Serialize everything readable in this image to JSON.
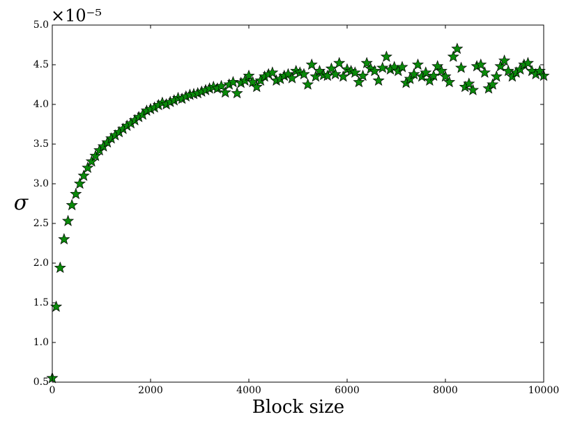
{
  "chart_data": {
    "type": "scatter",
    "x_label": "Block size",
    "y_label": "σ",
    "y_offset_label": "×10⁻⁵",
    "color": "#0a8a0a",
    "marker": "star",
    "xlim": [
      0,
      10000
    ],
    "xticks": [
      0,
      2000,
      4000,
      6000,
      8000,
      10000
    ],
    "ylim": [
      0.5,
      5.0
    ],
    "yticks": [
      0.5,
      {
        "value": 1,
        "label": "1.0"
      },
      1.5,
      {
        "value": 2,
        "label": "2.0"
      },
      2.5,
      {
        "value": 3,
        "label": "3.0"
      },
      3.5,
      {
        "value": 4,
        "label": "4.0"
      },
      4.5,
      {
        "value": 5,
        "label": "5.0"
      }
    ],
    "x": [
      0,
      80,
      160,
      240,
      320,
      400,
      480,
      560,
      640,
      720,
      800,
      880,
      960,
      1040,
      1120,
      1200,
      1280,
      1360,
      1440,
      1520,
      1600,
      1680,
      1760,
      1840,
      1920,
      2000,
      2080,
      2160,
      2240,
      2320,
      2400,
      2480,
      2560,
      2640,
      2720,
      2800,
      2880,
      2960,
      3040,
      3120,
      3200,
      3280,
      3360,
      3440,
      3520,
      3600,
      3680,
      3760,
      3840,
      3920,
      4000,
      4080,
      4160,
      4240,
      4320,
      4400,
      4480,
      4560,
      4640,
      4720,
      4800,
      4880,
      4960,
      5040,
      5120,
      5200,
      5280,
      5360,
      5440,
      5520,
      5600,
      5680,
      5760,
      5840,
      5920,
      6000,
      6080,
      6160,
      6240,
      6320,
      6400,
      6480,
      6560,
      6640,
      6720,
      6800,
      6880,
      6960,
      7040,
      7120,
      7200,
      7280,
      7360,
      7440,
      7520,
      7600,
      7680,
      7760,
      7840,
      7920,
      8000,
      8080,
      8160,
      8240,
      8320,
      8400,
      8480,
      8560,
      8640,
      8720,
      8800,
      8880,
      8960,
      9040,
      9120,
      9200,
      9280,
      9360,
      9440,
      9520,
      9600,
      9680,
      9760,
      9840,
      9920,
      10000
    ],
    "values": [
      0.55,
      1.45,
      1.94,
      2.3,
      2.53,
      2.73,
      2.87,
      3.0,
      3.1,
      3.2,
      3.28,
      3.35,
      3.42,
      3.47,
      3.52,
      3.57,
      3.61,
      3.65,
      3.69,
      3.73,
      3.76,
      3.8,
      3.84,
      3.87,
      3.92,
      3.94,
      3.96,
      3.99,
      4.02,
      4.0,
      4.03,
      4.05,
      4.08,
      4.07,
      4.1,
      4.12,
      4.13,
      4.14,
      4.16,
      4.18,
      4.2,
      4.22,
      4.2,
      4.23,
      4.15,
      4.25,
      4.28,
      4.14,
      4.27,
      4.3,
      4.36,
      4.28,
      4.22,
      4.3,
      4.35,
      4.38,
      4.4,
      4.3,
      4.32,
      4.36,
      4.38,
      4.33,
      4.42,
      4.4,
      4.38,
      4.25,
      4.5,
      4.35,
      4.42,
      4.37,
      4.36,
      4.45,
      4.38,
      4.52,
      4.35,
      4.44,
      4.42,
      4.4,
      4.28,
      4.36,
      4.52,
      4.45,
      4.42,
      4.3,
      4.46,
      4.6,
      4.44,
      4.47,
      4.42,
      4.47,
      4.27,
      4.32,
      4.38,
      4.5,
      4.35,
      4.4,
      4.3,
      4.36,
      4.48,
      4.42,
      4.35,
      4.28,
      4.6,
      4.7,
      4.46,
      4.22,
      4.26,
      4.18,
      4.48,
      4.5,
      4.4,
      4.2,
      4.25,
      4.35,
      4.48,
      4.55,
      4.42,
      4.35,
      4.4,
      4.44,
      4.5,
      4.52,
      4.42,
      4.38,
      4.42,
      4.36
    ]
  }
}
